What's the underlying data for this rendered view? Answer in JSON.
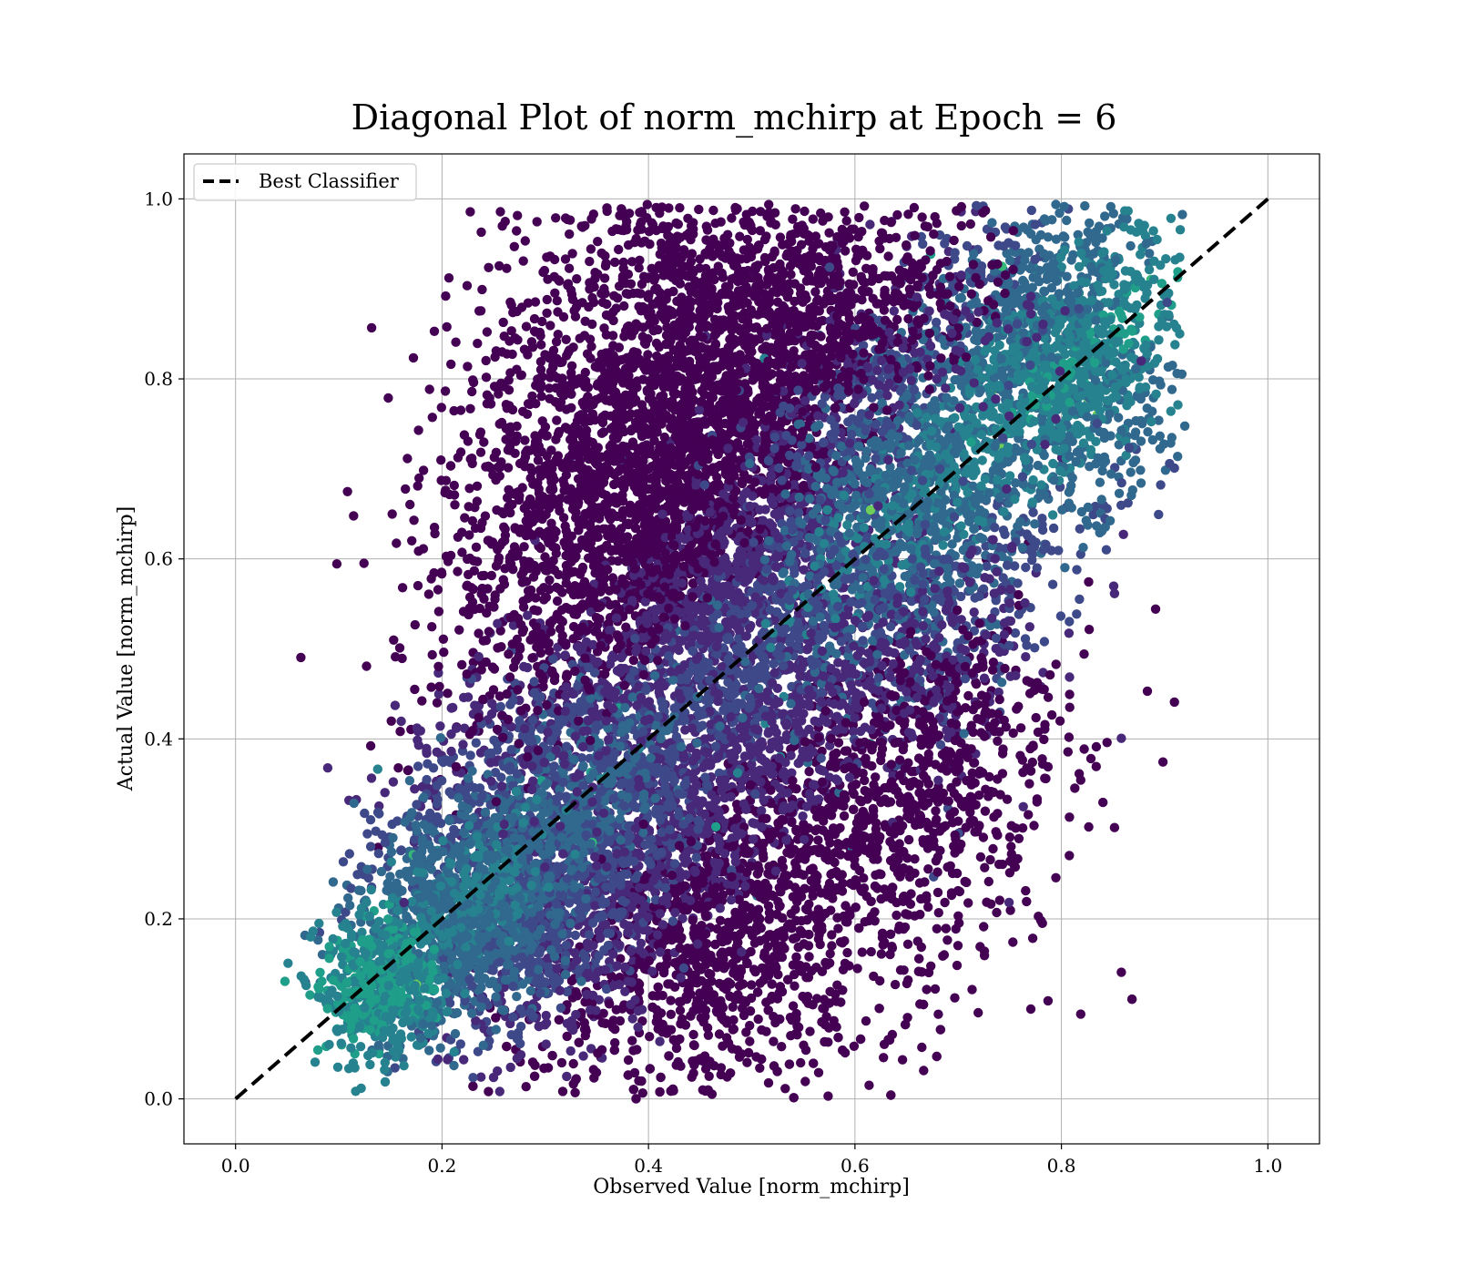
{
  "chart_data": {
    "type": "scatter",
    "title": "Diagonal Plot of norm_mchirp at Epoch = 6",
    "xlabel": "Observed Value [norm_mchirp]",
    "ylabel": "Actual Value [norm_mchirp]",
    "xlim": [
      -0.05,
      1.05
    ],
    "ylim": [
      -0.05,
      1.05
    ],
    "xticks": [
      "0.0",
      "0.2",
      "0.4",
      "0.6",
      "0.8",
      "1.0"
    ],
    "yticks": [
      "0.0",
      "0.2",
      "0.4",
      "0.6",
      "0.8",
      "1.0"
    ],
    "grid": true,
    "legend": {
      "placement": "top-left",
      "entries": [
        "Best Classifier"
      ]
    },
    "colormap": [
      "#440154",
      "#482878",
      "#3e4989",
      "#31688e",
      "#26828e",
      "#1f9e89",
      "#35b779",
      "#6ece58",
      "#b5de2b",
      "#fde725"
    ],
    "reference_line": {
      "name": "Best Classifier",
      "x": [
        0.0,
        1.0
      ],
      "y": [
        0.0,
        1.0
      ],
      "style": "dashed",
      "color": "#000000"
    },
    "point_density_regions": [
      {
        "cx": 0.46,
        "cy": 0.73,
        "sx": 0.09,
        "sy": 0.16,
        "count": 2600,
        "tone": 0.08
      },
      {
        "cx": 0.47,
        "cy": 0.52,
        "sx": 0.1,
        "sy": 0.16,
        "count": 2600,
        "tone": 0.1
      },
      {
        "cx": 0.44,
        "cy": 0.22,
        "sx": 0.1,
        "sy": 0.12,
        "count": 2400,
        "tone": 0.12
      },
      {
        "cx": 0.3,
        "cy": 0.28,
        "sx": 0.07,
        "sy": 0.1,
        "count": 1500,
        "tone": 0.22
      },
      {
        "cx": 0.22,
        "cy": 0.2,
        "sx": 0.05,
        "sy": 0.06,
        "count": 900,
        "tone": 0.3
      },
      {
        "cx": 0.14,
        "cy": 0.12,
        "sx": 0.03,
        "sy": 0.04,
        "count": 500,
        "tone": 0.42
      },
      {
        "cx": 0.66,
        "cy": 0.66,
        "sx": 0.07,
        "sy": 0.12,
        "count": 1500,
        "tone": 0.3
      },
      {
        "cx": 0.8,
        "cy": 0.83,
        "sx": 0.06,
        "sy": 0.08,
        "count": 1400,
        "tone": 0.36
      },
      {
        "cx": 0.66,
        "cy": 0.4,
        "sx": 0.07,
        "sy": 0.12,
        "count": 900,
        "tone": 0.14
      },
      {
        "cx": 0.32,
        "cy": 0.62,
        "sx": 0.07,
        "sy": 0.15,
        "count": 800,
        "tone": 0.05
      },
      {
        "cx": 0.58,
        "cy": 0.88,
        "sx": 0.09,
        "sy": 0.06,
        "count": 700,
        "tone": 0.1
      }
    ]
  }
}
